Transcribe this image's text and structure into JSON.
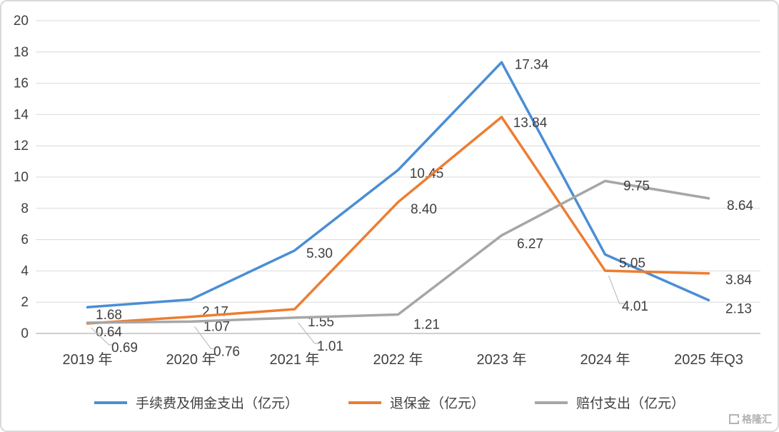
{
  "chart_data": {
    "type": "line",
    "categories": [
      "2019 年",
      "2020 年",
      "2021 年",
      "2022 年",
      "2023 年",
      "2024 年",
      "2025 年Q3"
    ],
    "series": [
      {
        "name": "手续费及佣金支出（亿元）",
        "color": "#4a8ed5",
        "values": [
          1.68,
          2.17,
          5.3,
          10.45,
          17.34,
          5.05,
          2.13
        ]
      },
      {
        "name": "退保金（亿元）",
        "color": "#ed7d31",
        "values": [
          0.64,
          1.07,
          1.55,
          8.4,
          13.84,
          4.01,
          3.84
        ]
      },
      {
        "name": "赔付支出（亿元）",
        "color": "#a6a6a6",
        "values": [
          0.69,
          0.76,
          1.01,
          1.21,
          6.27,
          9.75,
          8.64
        ]
      }
    ],
    "title": "",
    "xlabel": "",
    "ylabel": "",
    "ylim": [
      0,
      20
    ],
    "ytick_step": 2,
    "grid": true,
    "legend_position": "bottom",
    "value_decimals": 2
  },
  "colors": {
    "grid": "#d9d9d9",
    "axis": "#bfbfbf",
    "tick_text": "#404040",
    "label_text": "#3f3f3f",
    "leader": "#bfbfbf"
  },
  "watermark": {
    "text": "格隆汇"
  }
}
